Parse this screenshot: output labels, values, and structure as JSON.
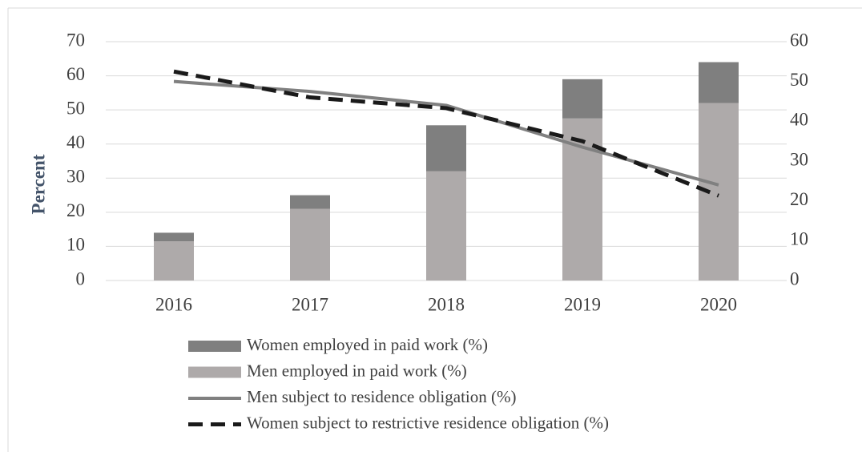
{
  "chart_data": {
    "type": "combo",
    "y_label": "Percent",
    "categories": [
      "2016",
      "2017",
      "2018",
      "2019",
      "2020"
    ],
    "series": [
      {
        "name": "Women employed in paid work (%)",
        "type": "bar",
        "color": "#7f7f7f",
        "values": [
          2.5,
          4,
          13.5,
          11.5,
          12
        ]
      },
      {
        "name": "Men employed in paid work (%)",
        "type": "bar",
        "color": "#aeaaaa",
        "values": [
          11.5,
          21,
          32,
          47.5,
          52
        ]
      },
      {
        "name": "Men subject to residence obligation (%)",
        "type": "line",
        "axis": "y2",
        "color": "#808080",
        "dashed": false,
        "values": [
          50,
          47.5,
          44,
          33.5,
          24
        ]
      },
      {
        "name": "Women subject to restrictive residence obligation (%)",
        "type": "line",
        "axis": "y2",
        "color": "#1a1a1a",
        "dashed": true,
        "values": [
          52.5,
          46,
          43.3,
          35,
          21.3
        ]
      }
    ],
    "ylim": [
      0,
      70
    ],
    "yticks": [
      0,
      10,
      20,
      30,
      40,
      50,
      60,
      70
    ],
    "y2lim": [
      0,
      60
    ],
    "y2ticks": [
      0,
      10,
      20,
      30,
      40,
      50,
      60
    ],
    "grid": true
  }
}
